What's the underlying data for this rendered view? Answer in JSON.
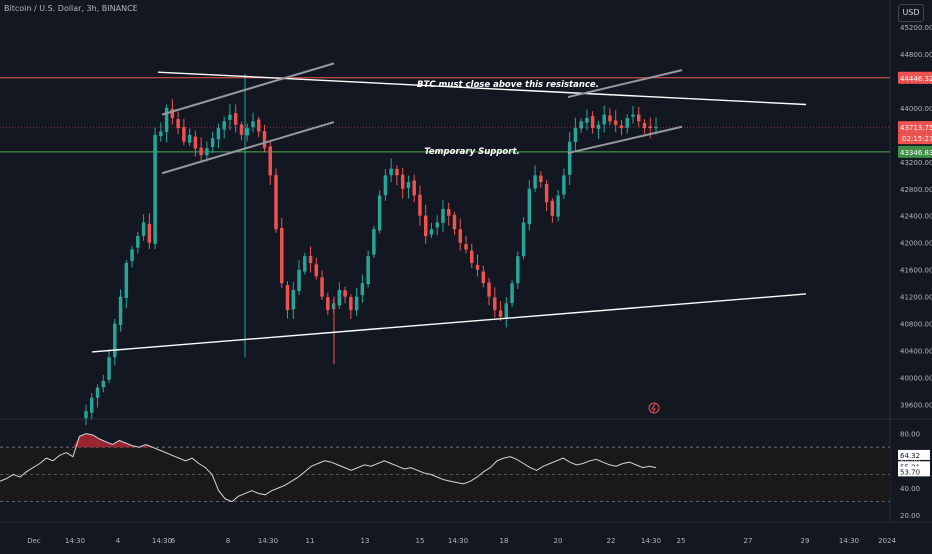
{
  "title": "Bitcoin / U.S. Dollar, 3h, BINANCE",
  "currency_label": "USD",
  "colors": {
    "background": "#131722",
    "up": "#26a69a",
    "down": "#ef5350",
    "resistance": "#ef5350",
    "support": "#4caf50",
    "trendline": "#ffffff",
    "channel": "#9598a1",
    "rsi_line": "#d1d4dc",
    "rsi_fill_high": "#b22833"
  },
  "price_axis": {
    "ticks": [
      45200,
      44800,
      44400,
      44000,
      43600,
      43200,
      42800,
      42400,
      42000,
      41600,
      41200,
      40800,
      40400,
      40000,
      39600
    ],
    "tick_labels": [
      "45200.00",
      "44800.00",
      "44400.00",
      "44000.00",
      "43600.00",
      "43200.00",
      "42800.00",
      "42400.00",
      "42000.00",
      "41600.00",
      "41200.00",
      "40800.00",
      "40400.00",
      "40000.00",
      "39600.00"
    ]
  },
  "price_labels": {
    "resistance": "44446.32",
    "current": "43713.75",
    "countdown": "02:15:27",
    "support": "43346.83"
  },
  "annotations": {
    "resistance_note": "BTC must close above this resistance.",
    "support_note": "Temporary Support."
  },
  "rsi_axis": {
    "ticks": [
      80,
      60,
      40,
      20
    ],
    "tick_labels": [
      "80.00",
      "60.00",
      "40.00",
      "20.00"
    ],
    "labels": [
      "64.32",
      "55.21",
      "53.70"
    ]
  },
  "time_axis": {
    "labels": [
      "Dec",
      "14:30",
      "4",
      "14:30",
      "6",
      "8",
      "14:30",
      "11",
      "13",
      "15",
      "14:30",
      "18",
      "20",
      "22",
      "14:30",
      "25",
      "27",
      "29",
      "14:30",
      "2024"
    ]
  },
  "chart_data": {
    "type": "candlestick",
    "title": "Bitcoin / U.S. Dollar, 3h, BINANCE",
    "ylim": [
      39400,
      45600
    ],
    "resistance_level": 44446.32,
    "support_level": 43346.83,
    "last_price": 43713.75,
    "close_series": [
      39500,
      39700,
      39850,
      39950,
      40300,
      40800,
      41200,
      41700,
      41900,
      42100,
      42300,
      42000,
      43600,
      43650,
      44000,
      43850,
      43700,
      43500,
      43600,
      43400,
      43300,
      43400,
      43550,
      43700,
      43800,
      43900,
      43750,
      43600,
      43700,
      43800,
      43650,
      43400,
      43000,
      42200,
      41400,
      41000,
      41300,
      41600,
      41800,
      41700,
      41500,
      41200,
      41000,
      41100,
      41300,
      41200,
      41000,
      41200,
      41400,
      41800,
      42200,
      42700,
      43000,
      43100,
      43000,
      42800,
      42900,
      42700,
      42400,
      42100,
      42200,
      42300,
      42500,
      42400,
      42200,
      42000,
      41900,
      41700,
      41600,
      41400,
      41200,
      41000,
      40900,
      41100,
      41400,
      41800,
      42300,
      42800,
      43000,
      42900,
      42600,
      42400,
      42700,
      43000,
      43500,
      43700,
      43800,
      43850,
      43700,
      43750,
      43900,
      43800,
      43750,
      43700,
      43850,
      43900,
      43800,
      43700,
      43700,
      43714
    ],
    "rsi": {
      "values": [
        45,
        47,
        50,
        48,
        52,
        55,
        58,
        62,
        60,
        64,
        66,
        63,
        78,
        80,
        79,
        76,
        74,
        72,
        75,
        73,
        71,
        70,
        72,
        70,
        68,
        66,
        64,
        62,
        60,
        62,
        58,
        55,
        50,
        38,
        32,
        30,
        34,
        36,
        38,
        36,
        35,
        38,
        40,
        42,
        45,
        48,
        52,
        56,
        58,
        60,
        59,
        57,
        55,
        53,
        55,
        57,
        56,
        58,
        60,
        58,
        56,
        54,
        55,
        53,
        51,
        50,
        48,
        46,
        45,
        44,
        43,
        45,
        48,
        52,
        55,
        60,
        62,
        63,
        61,
        58,
        55,
        53,
        56,
        58,
        60,
        62,
        59,
        57,
        58,
        60,
        61,
        59,
        57,
        56,
        58,
        59,
        57,
        55,
        56,
        55
      ],
      "overbought": 70,
      "oversold": 30,
      "ylim": [
        15,
        90
      ]
    }
  }
}
